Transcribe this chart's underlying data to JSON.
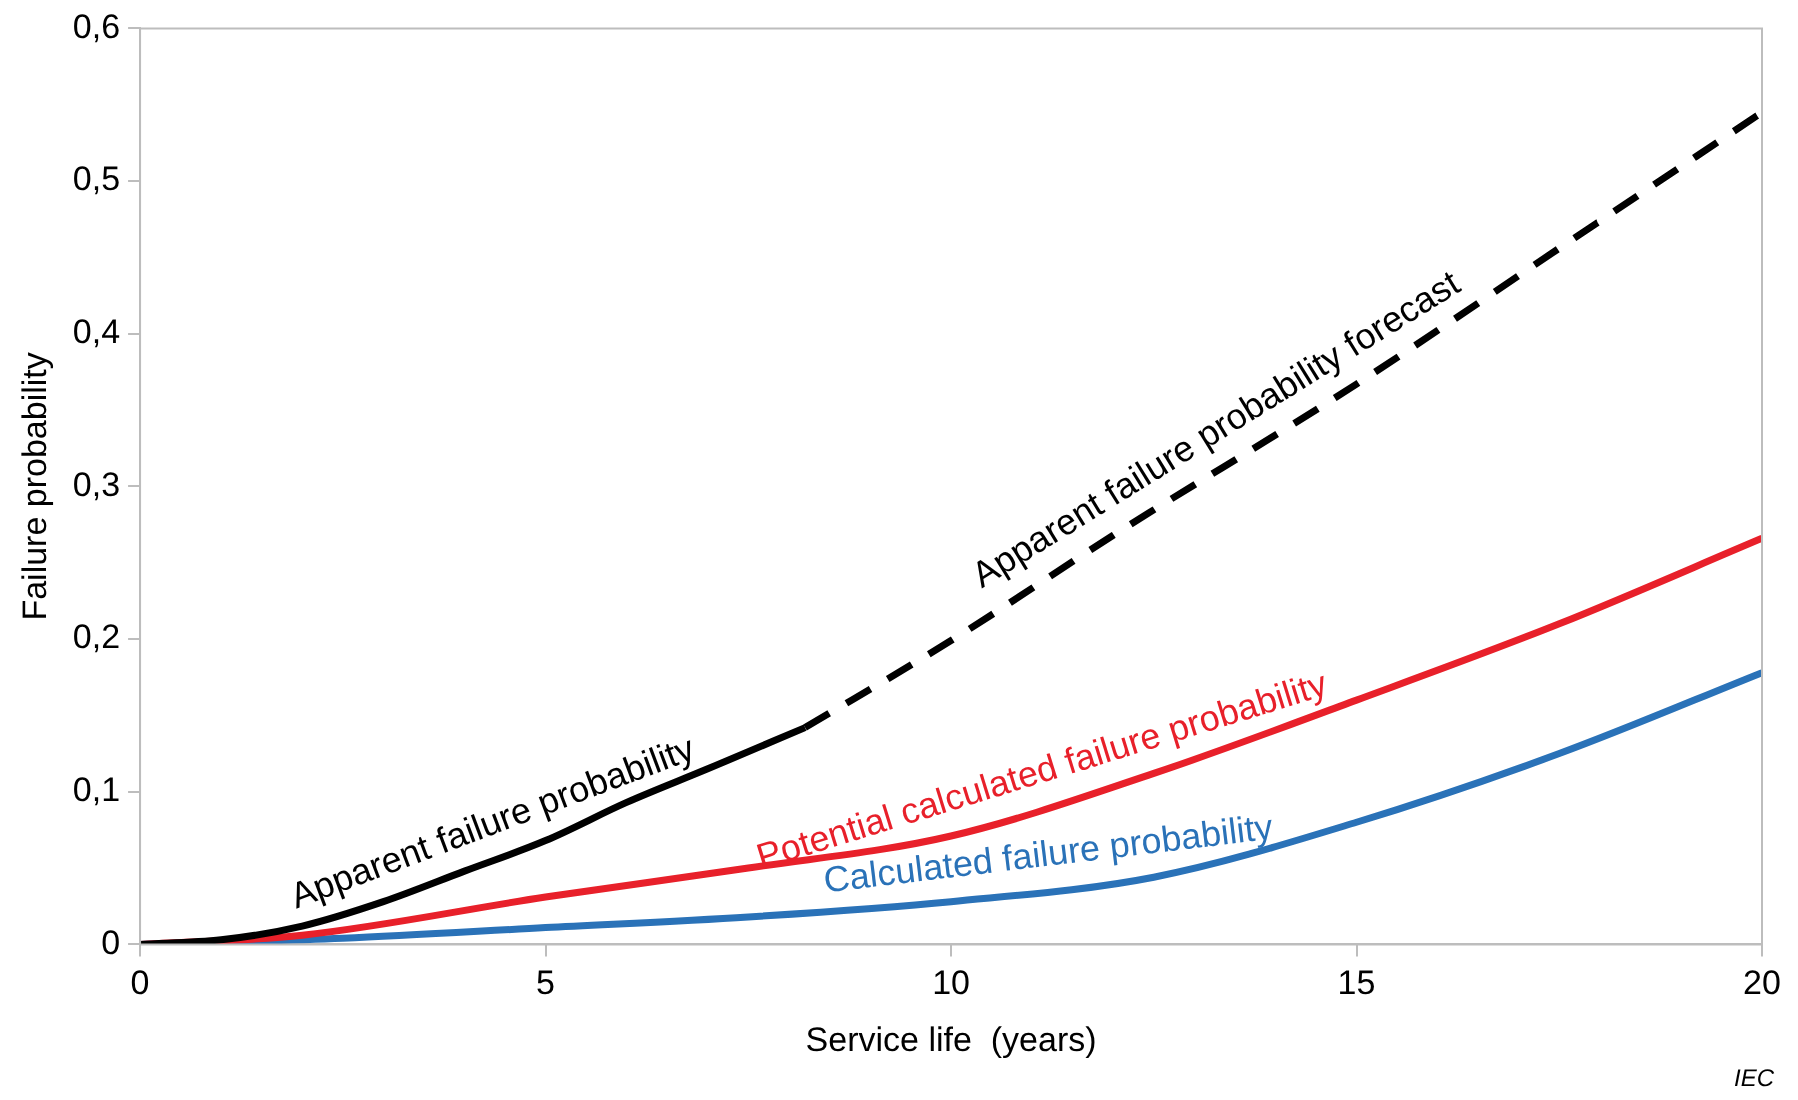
{
  "chart_data": {
    "type": "line",
    "xlabel": "Service life  (years)",
    "ylabel": "Failure probability",
    "xlim": [
      0,
      20
    ],
    "xticks": [
      0,
      5,
      10,
      15,
      20
    ],
    "ylim": [
      0,
      0.6
    ],
    "yticks": [
      0,
      {
        "value": 0.1,
        "label": "0,1"
      },
      {
        "value": 0.2,
        "label": "0,2"
      },
      {
        "value": 0.3,
        "label": "0,3"
      },
      {
        "value": 0.4,
        "label": "0,4"
      },
      {
        "value": 0.5,
        "label": "0,5"
      },
      {
        "value": 0.6,
        "label": "0,6"
      }
    ],
    "grid": false,
    "legend": false,
    "marker": "none",
    "series": [
      {
        "name": "Apparent failure probability",
        "color": "#000000",
        "line_style": "solid",
        "x": [
          0,
          1,
          2,
          3,
          4,
          5,
          6,
          7,
          8.2
        ],
        "values": [
          0,
          0.003,
          0.012,
          0.028,
          0.048,
          0.068,
          0.093,
          0.115,
          0.142
        ]
      },
      {
        "name": "Apparent failure probability forecast",
        "color": "#000000",
        "line_style": "dashed",
        "x": [
          8.2,
          10,
          12,
          15,
          17.5,
          20
        ],
        "values": [
          0.142,
          0.199,
          0.268,
          0.367,
          0.456,
          0.545
        ]
      },
      {
        "name": "Potential calculated failure probability",
        "color": "#e8202a",
        "line_style": "solid",
        "x": [
          0,
          2,
          5,
          7.5,
          10,
          12.5,
          15,
          17.5,
          20
        ],
        "values": [
          0,
          0.006,
          0.031,
          0.05,
          0.071,
          0.112,
          0.16,
          0.21,
          0.266
        ]
      },
      {
        "name": "Calculated failure probability",
        "color": "#2a72b8",
        "line_style": "solid",
        "x": [
          0,
          2.5,
          5,
          7.5,
          10,
          12.5,
          15,
          17.5,
          20
        ],
        "values": [
          0,
          0.004,
          0.011,
          0.018,
          0.028,
          0.044,
          0.08,
          0.125,
          0.178
        ]
      }
    ],
    "annotations": [
      "IEC"
    ]
  }
}
